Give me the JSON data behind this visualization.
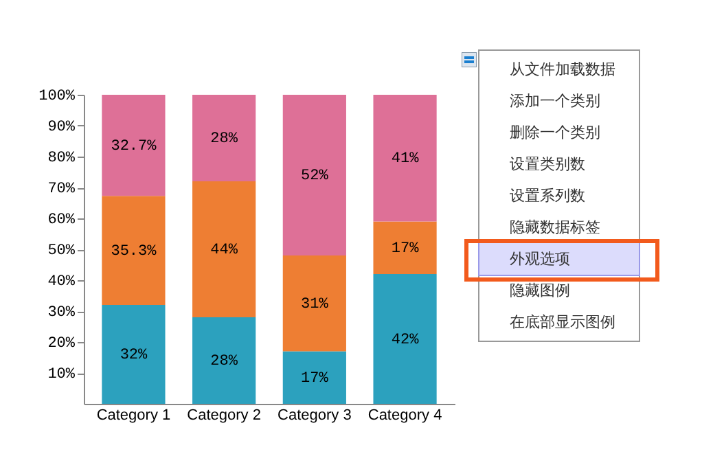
{
  "chart_data": {
    "type": "bar",
    "stacked": true,
    "categories": [
      "Category 1",
      "Category 2",
      "Category 3",
      "Category 4"
    ],
    "series": [
      {
        "color": "#2ca1be",
        "values": [
          32,
          28,
          17,
          42
        ],
        "value_labels": [
          "32%",
          "28%",
          "17%",
          "42%"
        ]
      },
      {
        "color": "#ee7e33",
        "values": [
          35.3,
          44,
          31,
          17
        ],
        "value_labels": [
          "35.3%",
          "44%",
          "31%",
          "17%"
        ]
      },
      {
        "color": "#de7097",
        "values": [
          32.7,
          28,
          52,
          41
        ],
        "value_labels": [
          "32.7%",
          "28%",
          "52%",
          "41%"
        ]
      }
    ],
    "ylim": [
      0,
      100
    ],
    "yticks": [
      {
        "value": 10,
        "label": "10%"
      },
      {
        "value": 20,
        "label": "20%"
      },
      {
        "value": 30,
        "label": "30%"
      },
      {
        "value": 40,
        "label": "40%"
      },
      {
        "value": 50,
        "label": "50%"
      },
      {
        "value": 60,
        "label": "60%"
      },
      {
        "value": 70,
        "label": "70%"
      },
      {
        "value": 80,
        "label": "80%"
      },
      {
        "value": 90,
        "label": "90%"
      },
      {
        "value": 100,
        "label": "100%"
      }
    ],
    "annotations": [
      "从文件加载数据",
      "添加一个类别",
      "删除一个类别",
      "设置类别数",
      "设置系列数",
      "隐藏数据标签",
      "外观选项",
      "隐藏图例",
      "在底部显示图例"
    ]
  }
}
